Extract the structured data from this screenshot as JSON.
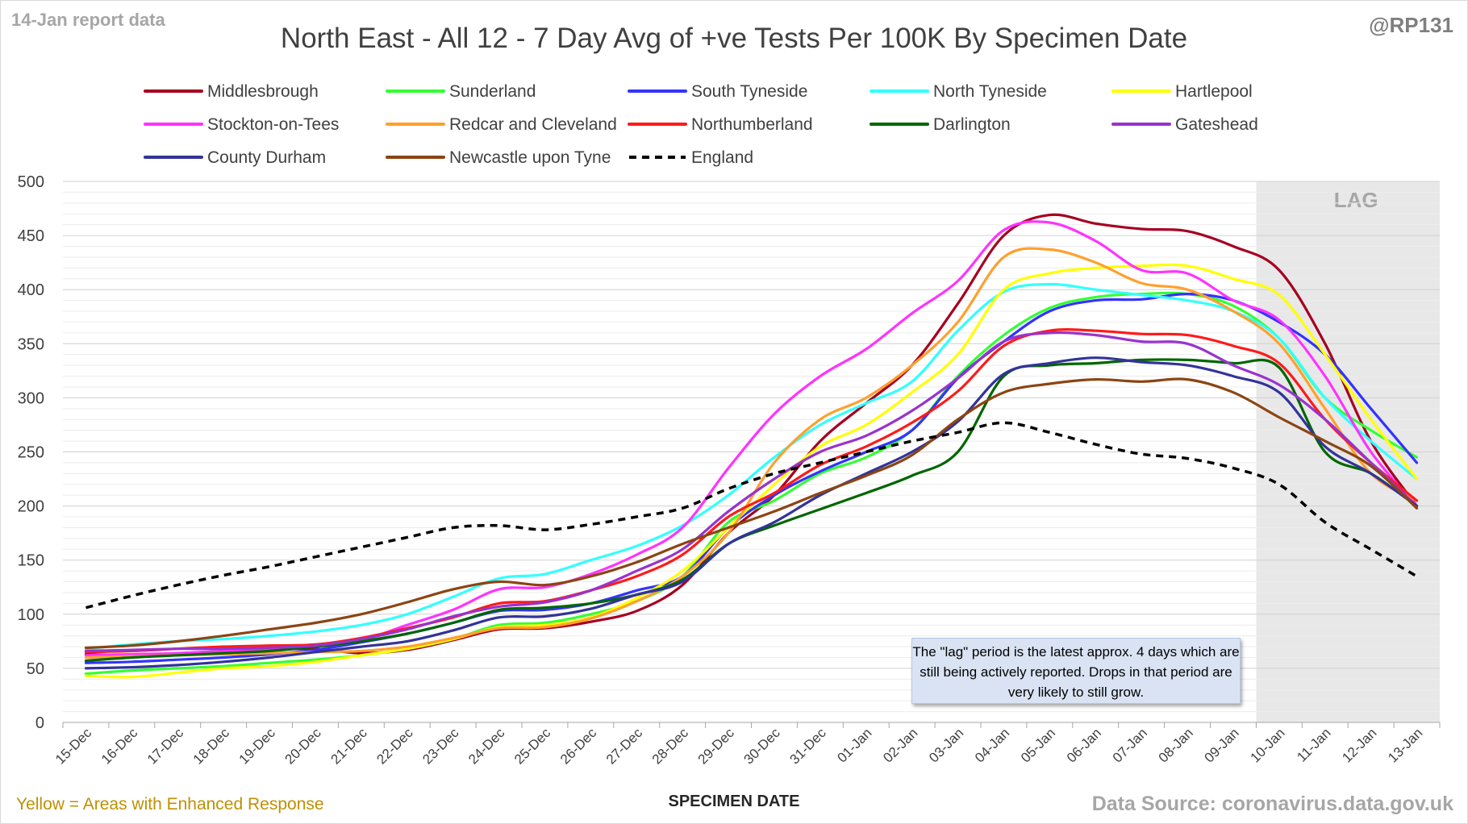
{
  "header": {
    "report_date": "14-Jan report data",
    "handle": "@RP131",
    "title": "North East - All 12 - 7 Day Avg of +ve Tests Per 100K By Specimen Date"
  },
  "footer": {
    "note": "Yellow = Areas with Enhanced Response",
    "source": "Data Source: coronavirus.data.gov.uk"
  },
  "annotation": {
    "lag_label": "LAG",
    "lag_note": "The \"lag\" period is the latest approx. 4 days which are still being actively reported.  Drops in that period are very likely to still grow."
  },
  "chart_data": {
    "type": "line",
    "title": "North East - All 12 - 7 Day Avg of +ve Tests Per 100K By Specimen Date",
    "xlabel": "SPECIMEN DATE",
    "ylabel": "",
    "ylim": [
      0,
      500
    ],
    "yticks": [
      0,
      50,
      100,
      150,
      200,
      250,
      300,
      350,
      400,
      450,
      500
    ],
    "grid": true,
    "legend_position": "top",
    "lag_region": {
      "from": "10-Jan",
      "to": "13-Jan",
      "color": "#e8e8e8"
    },
    "categories": [
      "15-Dec",
      "16-Dec",
      "17-Dec",
      "18-Dec",
      "19-Dec",
      "20-Dec",
      "21-Dec",
      "22-Dec",
      "23-Dec",
      "24-Dec",
      "25-Dec",
      "26-Dec",
      "27-Dec",
      "28-Dec",
      "29-Dec",
      "30-Dec",
      "31-Dec",
      "01-Jan",
      "02-Jan",
      "03-Jan",
      "04-Jan",
      "05-Jan",
      "06-Jan",
      "07-Jan",
      "08-Jan",
      "09-Jan",
      "10-Jan",
      "11-Jan",
      "12-Jan",
      "13-Jan"
    ],
    "series": [
      {
        "name": "Middlesbrough",
        "color": "#a50021",
        "dash": false,
        "values": [
          63,
          62,
          63,
          65,
          67,
          68,
          64,
          67,
          76,
          86,
          87,
          93,
          103,
          127,
          175,
          210,
          260,
          295,
          330,
          387,
          450,
          469,
          461,
          456,
          454,
          440,
          418,
          350,
          260,
          200
        ]
      },
      {
        "name": "Sunderland",
        "color": "#33ff33",
        "dash": false,
        "values": [
          45,
          48,
          50,
          52,
          55,
          58,
          62,
          68,
          77,
          90,
          92,
          100,
          112,
          135,
          185,
          205,
          230,
          245,
          270,
          320,
          358,
          383,
          393,
          396,
          396,
          385,
          355,
          300,
          270,
          245
        ]
      },
      {
        "name": "South Tyneside",
        "color": "#3333ff",
        "dash": false,
        "values": [
          55,
          56,
          58,
          60,
          63,
          67,
          74,
          82,
          92,
          103,
          104,
          110,
          122,
          135,
          180,
          210,
          232,
          250,
          270,
          318,
          352,
          380,
          390,
          391,
          396,
          390,
          370,
          340,
          290,
          240
        ]
      },
      {
        "name": "North Tyneside",
        "color": "#33ffff",
        "dash": false,
        "values": [
          68,
          72,
          75,
          77,
          80,
          84,
          90,
          100,
          116,
          133,
          137,
          150,
          163,
          182,
          210,
          245,
          275,
          295,
          315,
          362,
          398,
          405,
          400,
          395,
          390,
          380,
          355,
          300,
          260,
          225
        ]
      },
      {
        "name": "Hartlepool",
        "color": "#ffff00",
        "dash": false,
        "values": [
          43,
          42,
          46,
          50,
          52,
          56,
          62,
          68,
          77,
          88,
          90,
          97,
          115,
          140,
          180,
          220,
          255,
          275,
          305,
          340,
          400,
          415,
          420,
          422,
          422,
          410,
          395,
          340,
          280,
          225
        ]
      },
      {
        "name": "Stockton-on-Tees",
        "color": "#ff33ff",
        "dash": false,
        "values": [
          62,
          63,
          64,
          66,
          68,
          70,
          76,
          90,
          104,
          123,
          125,
          137,
          155,
          180,
          235,
          285,
          320,
          345,
          378,
          408,
          455,
          462,
          445,
          418,
          415,
          390,
          372,
          320,
          250,
          200
        ]
      },
      {
        "name": "Redcar and Cleveland",
        "color": "#ffa02e",
        "dash": false,
        "values": [
          60,
          61,
          62,
          63,
          64,
          65,
          66,
          70,
          78,
          87,
          88,
          96,
          112,
          135,
          175,
          240,
          280,
          300,
          330,
          370,
          430,
          437,
          425,
          406,
          400,
          380,
          350,
          290,
          230,
          205
        ]
      },
      {
        "name": "Northumberland",
        "color": "#ff1a1a",
        "dash": false,
        "values": [
          65,
          66,
          68,
          70,
          71,
          72,
          78,
          87,
          97,
          110,
          112,
          122,
          135,
          155,
          190,
          212,
          238,
          255,
          277,
          306,
          348,
          362,
          362,
          359,
          358,
          348,
          332,
          280,
          240,
          205
        ]
      },
      {
        "name": "Darlington",
        "color": "#006600",
        "dash": false,
        "values": [
          57,
          60,
          62,
          64,
          66,
          70,
          75,
          82,
          92,
          104,
          106,
          110,
          118,
          132,
          165,
          182,
          197,
          212,
          228,
          250,
          320,
          330,
          332,
          335,
          335,
          332,
          328,
          250,
          230,
          200
        ]
      },
      {
        "name": "Gateshead",
        "color": "#9933cc",
        "dash": false,
        "values": [
          66,
          67,
          68,
          68,
          69,
          71,
          77,
          86,
          98,
          107,
          111,
          122,
          140,
          160,
          195,
          225,
          250,
          265,
          288,
          318,
          352,
          360,
          358,
          352,
          350,
          330,
          312,
          280,
          240,
          200
        ]
      },
      {
        "name": "County Durham",
        "color": "#333399",
        "dash": false,
        "values": [
          50,
          51,
          53,
          56,
          60,
          65,
          70,
          75,
          85,
          97,
          98,
          105,
          118,
          130,
          165,
          185,
          210,
          230,
          250,
          278,
          322,
          332,
          337,
          333,
          330,
          320,
          305,
          255,
          230,
          200
        ]
      },
      {
        "name": "Newcastle upon Tyne",
        "color": "#8b4513",
        "dash": false,
        "values": [
          69,
          71,
          75,
          80,
          86,
          92,
          100,
          111,
          123,
          130,
          127,
          135,
          148,
          165,
          180,
          195,
          212,
          228,
          247,
          280,
          305,
          313,
          317,
          315,
          317,
          305,
          282,
          260,
          237,
          198
        ]
      },
      {
        "name": "England",
        "color": "#000000",
        "dash": true,
        "values": [
          106,
          117,
          127,
          136,
          144,
          153,
          162,
          171,
          180,
          182,
          178,
          183,
          190,
          198,
          216,
          230,
          240,
          250,
          260,
          268,
          277,
          268,
          257,
          248,
          244,
          235,
          220,
          185,
          160,
          135
        ]
      }
    ]
  }
}
